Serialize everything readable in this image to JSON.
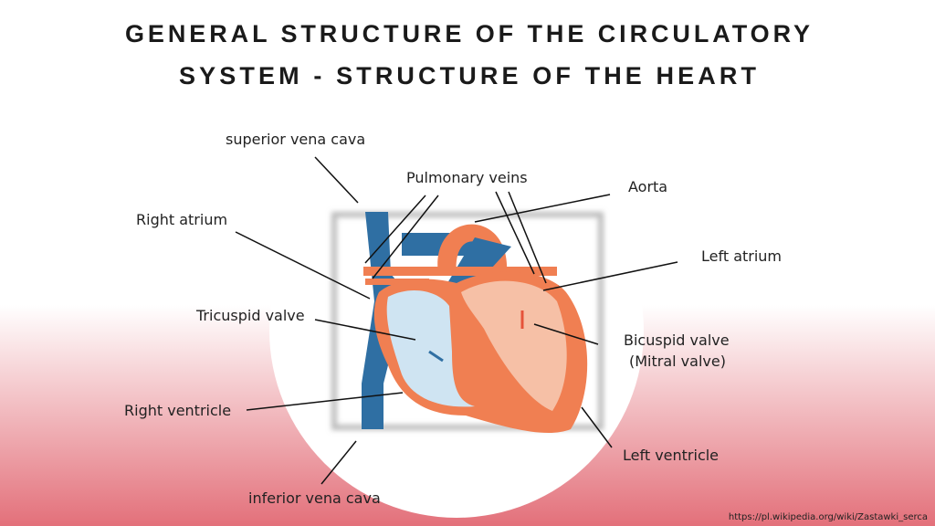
{
  "header": {
    "title_lines": [
      "GENERAL STRUCTURE OF THE CIRCULATORY",
      "SYSTEM - STRUCTURE OF THE HEART"
    ]
  },
  "labels": [
    {
      "label": "superior vena cava"
    },
    {
      "label": "Pulmonary veins"
    },
    {
      "label": "Aorta"
    },
    {
      "label": "Right atrium"
    },
    {
      "label": "Left atrium"
    },
    {
      "label": "Tricuspid valve"
    },
    {
      "label": "Bicuspid valve"
    },
    {
      "label": "(Mitral valve)"
    },
    {
      "label": "Right ventricle"
    },
    {
      "label": "Left ventricle"
    },
    {
      "label": "inferior vena cava"
    }
  ],
  "source": "https://pl.wikipedia.org/wiki/Zastawki_serca"
}
